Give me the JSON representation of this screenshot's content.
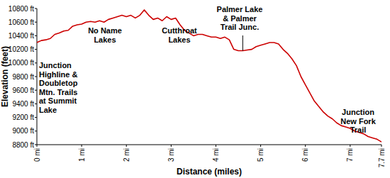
{
  "chart_data": {
    "type": "line",
    "x_label": "Distance (miles)",
    "y_label": "Elevation (feet)",
    "color": "#cc0000",
    "grid": false,
    "xlim": [
      0,
      7.7
    ],
    "ylim": [
      8800,
      10800
    ],
    "xticks": [
      {
        "value": 0,
        "label": "0 mi"
      },
      {
        "value": 1,
        "label": "1 mi"
      },
      {
        "value": 2,
        "label": "2 mi"
      },
      {
        "value": 3,
        "label": "3 mi"
      },
      {
        "value": 4,
        "label": "4 mi"
      },
      {
        "value": 5,
        "label": "5 mi"
      },
      {
        "value": 6,
        "label": "6 mi"
      },
      {
        "value": 7,
        "label": "7 mi"
      },
      {
        "value": 7.7,
        "label": "7.7 mi"
      }
    ],
    "yticks": [
      {
        "value": 8800,
        "label": "8800 ft"
      },
      {
        "value": 9000,
        "label": "9000 ft"
      },
      {
        "value": 9200,
        "label": "9200 ft"
      },
      {
        "value": 9400,
        "label": "9400 ft"
      },
      {
        "value": 9600,
        "label": "9600 ft"
      },
      {
        "value": 9800,
        "label": "9800 ft"
      },
      {
        "value": 10000,
        "label": "10000 ft"
      },
      {
        "value": 10200,
        "label": "10200 ft"
      },
      {
        "value": 10400,
        "label": "10400 ft"
      },
      {
        "value": 10600,
        "label": "10600 ft"
      },
      {
        "value": 10800,
        "label": "10800 ft"
      }
    ],
    "x": [
      0,
      0.1,
      0.2,
      0.3,
      0.4,
      0.5,
      0.6,
      0.7,
      0.8,
      0.9,
      1.0,
      1.1,
      1.2,
      1.3,
      1.4,
      1.5,
      1.6,
      1.7,
      1.8,
      1.9,
      2.0,
      2.1,
      2.2,
      2.3,
      2.4,
      2.5,
      2.6,
      2.7,
      2.8,
      2.9,
      3.0,
      3.1,
      3.2,
      3.3,
      3.4,
      3.5,
      3.6,
      3.7,
      3.8,
      3.9,
      4.0,
      4.1,
      4.2,
      4.3,
      4.4,
      4.5,
      4.6,
      4.7,
      4.8,
      4.9,
      5.0,
      5.1,
      5.2,
      5.3,
      5.4,
      5.5,
      5.6,
      5.7,
      5.8,
      5.9,
      6.0,
      6.1,
      6.2,
      6.3,
      6.4,
      6.5,
      6.6,
      6.7,
      6.8,
      6.9,
      7.0,
      7.1,
      7.2,
      7.3,
      7.4,
      7.5,
      7.6,
      7.7
    ],
    "values": [
      10300,
      10330,
      10340,
      10360,
      10420,
      10440,
      10470,
      10480,
      10540,
      10560,
      10570,
      10600,
      10610,
      10600,
      10620,
      10600,
      10640,
      10660,
      10680,
      10700,
      10680,
      10700,
      10660,
      10700,
      10780,
      10700,
      10640,
      10660,
      10620,
      10680,
      10640,
      10660,
      10560,
      10480,
      10440,
      10400,
      10420,
      10420,
      10400,
      10380,
      10380,
      10360,
      10380,
      10340,
      10200,
      10180,
      10180,
      10190,
      10200,
      10240,
      10260,
      10280,
      10300,
      10300,
      10280,
      10200,
      10140,
      10060,
      9960,
      9800,
      9680,
      9560,
      9440,
      9360,
      9280,
      9220,
      9180,
      9120,
      9080,
      9060,
      9040,
      9000,
      8980,
      8960,
      8920,
      8900,
      8880,
      8840
    ],
    "vlines": [
      4.6
    ],
    "annotations": [
      {
        "lines": [
          "Junction",
          "Highline &",
          "Doubletop",
          "Mtn. Trails",
          "at Summit",
          "Lake"
        ]
      },
      {
        "lines": [
          "No Name",
          "Lakes"
        ]
      },
      {
        "lines": [
          "Cutthroat",
          "Lakes"
        ]
      },
      {
        "lines": [
          "Palmer Lake",
          "& Palmer",
          "Trail Junc."
        ]
      },
      {
        "lines": [
          "Junction",
          "New Fork",
          "Trail"
        ]
      }
    ]
  }
}
